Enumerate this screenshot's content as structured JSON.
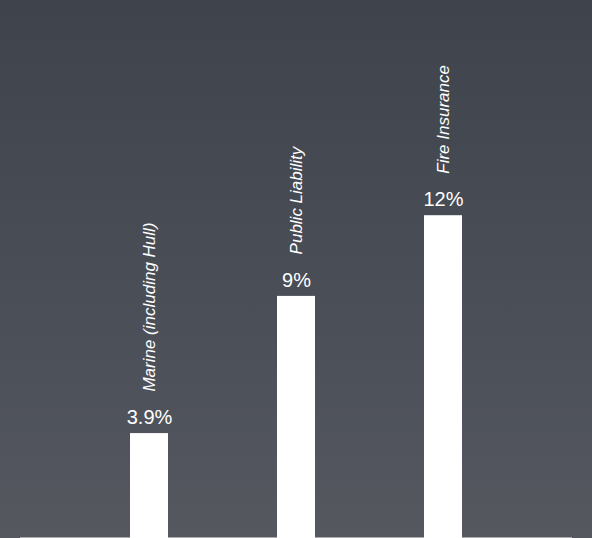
{
  "chart_data": {
    "type": "bar",
    "categories": [
      "Marine (including Hull)",
      "Public Liability",
      "Fire Insurance"
    ],
    "values": [
      3.9,
      9,
      12
    ],
    "value_labels": [
      "3.9%",
      "9%",
      "12%"
    ],
    "color": "#ffffff",
    "ylim": [
      0,
      20
    ],
    "tick_labels": false,
    "data_labels": true
  }
}
